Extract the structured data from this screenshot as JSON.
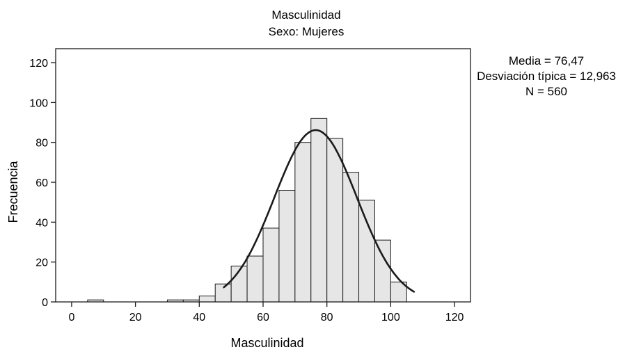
{
  "chart_data": {
    "type": "bar",
    "title": "Masculinidad",
    "subtitle": "Sexo: Mujeres",
    "xlabel": "Masculinidad",
    "ylabel": "Frecuencia",
    "xlim": [
      -5,
      125
    ],
    "ylim": [
      0,
      127
    ],
    "xticks": [
      "0",
      "20",
      "40",
      "60",
      "80",
      "100",
      "120"
    ],
    "yticks": [
      "0",
      "20",
      "40",
      "60",
      "80",
      "100",
      "120"
    ],
    "grid": false,
    "bin_width": 5,
    "bins": [
      {
        "start": 5,
        "count": 1
      },
      {
        "start": 30,
        "count": 1
      },
      {
        "start": 35,
        "count": 1
      },
      {
        "start": 40,
        "count": 3
      },
      {
        "start": 45,
        "count": 9
      },
      {
        "start": 50,
        "count": 18
      },
      {
        "start": 55,
        "count": 23
      },
      {
        "start": 60,
        "count": 37
      },
      {
        "start": 65,
        "count": 56
      },
      {
        "start": 70,
        "count": 80
      },
      {
        "start": 75,
        "count": 92
      },
      {
        "start": 80,
        "count": 82
      },
      {
        "start": 85,
        "count": 65
      },
      {
        "start": 90,
        "count": 51
      },
      {
        "start": 95,
        "count": 31
      },
      {
        "start": 100,
        "count": 10
      }
    ],
    "normal_curve": {
      "mean": 76.47,
      "sd": 12.963,
      "n": 560
    },
    "bar_color": "#e6e6e6",
    "line_color": "#1a1a1a"
  },
  "stats": {
    "mean_line": "Media = 76,47",
    "sd_line": "Desviación típica = 12,963",
    "n_line": "N = 560"
  }
}
